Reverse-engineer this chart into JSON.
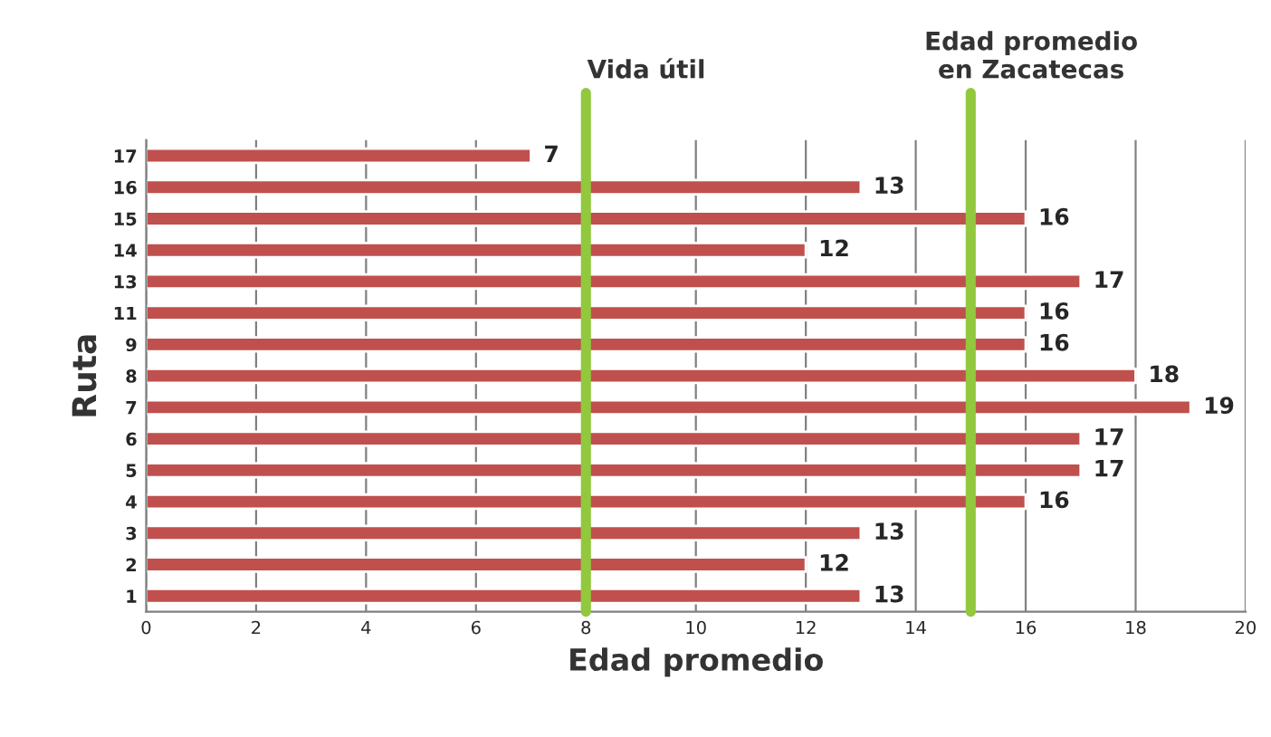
{
  "chart_data": {
    "type": "bar",
    "orientation": "horizontal",
    "xlabel": "Edad promedio",
    "ylabel": "Ruta",
    "categories": [
      "17",
      "16",
      "15",
      "14",
      "13",
      "11",
      "9",
      "8",
      "7",
      "6",
      "5",
      "4",
      "3",
      "2",
      "1"
    ],
    "values": [
      7,
      13,
      16,
      12,
      17,
      16,
      16,
      18,
      19,
      17,
      17,
      16,
      13,
      12,
      13
    ],
    "color": "#c0504d",
    "xlim": [
      0,
      20
    ],
    "xticks": [
      0,
      2,
      4,
      6,
      8,
      10,
      12,
      14,
      16,
      18,
      20
    ],
    "grid": "x",
    "data_labels": true,
    "ref_lines": [
      {
        "axis": "x",
        "value": 8,
        "label": "Vida útil",
        "color": "#92c83e"
      },
      {
        "axis": "x",
        "value": 15,
        "label": "Edad promedio\nen Zacatecas",
        "color": "#92c83e"
      }
    ]
  }
}
